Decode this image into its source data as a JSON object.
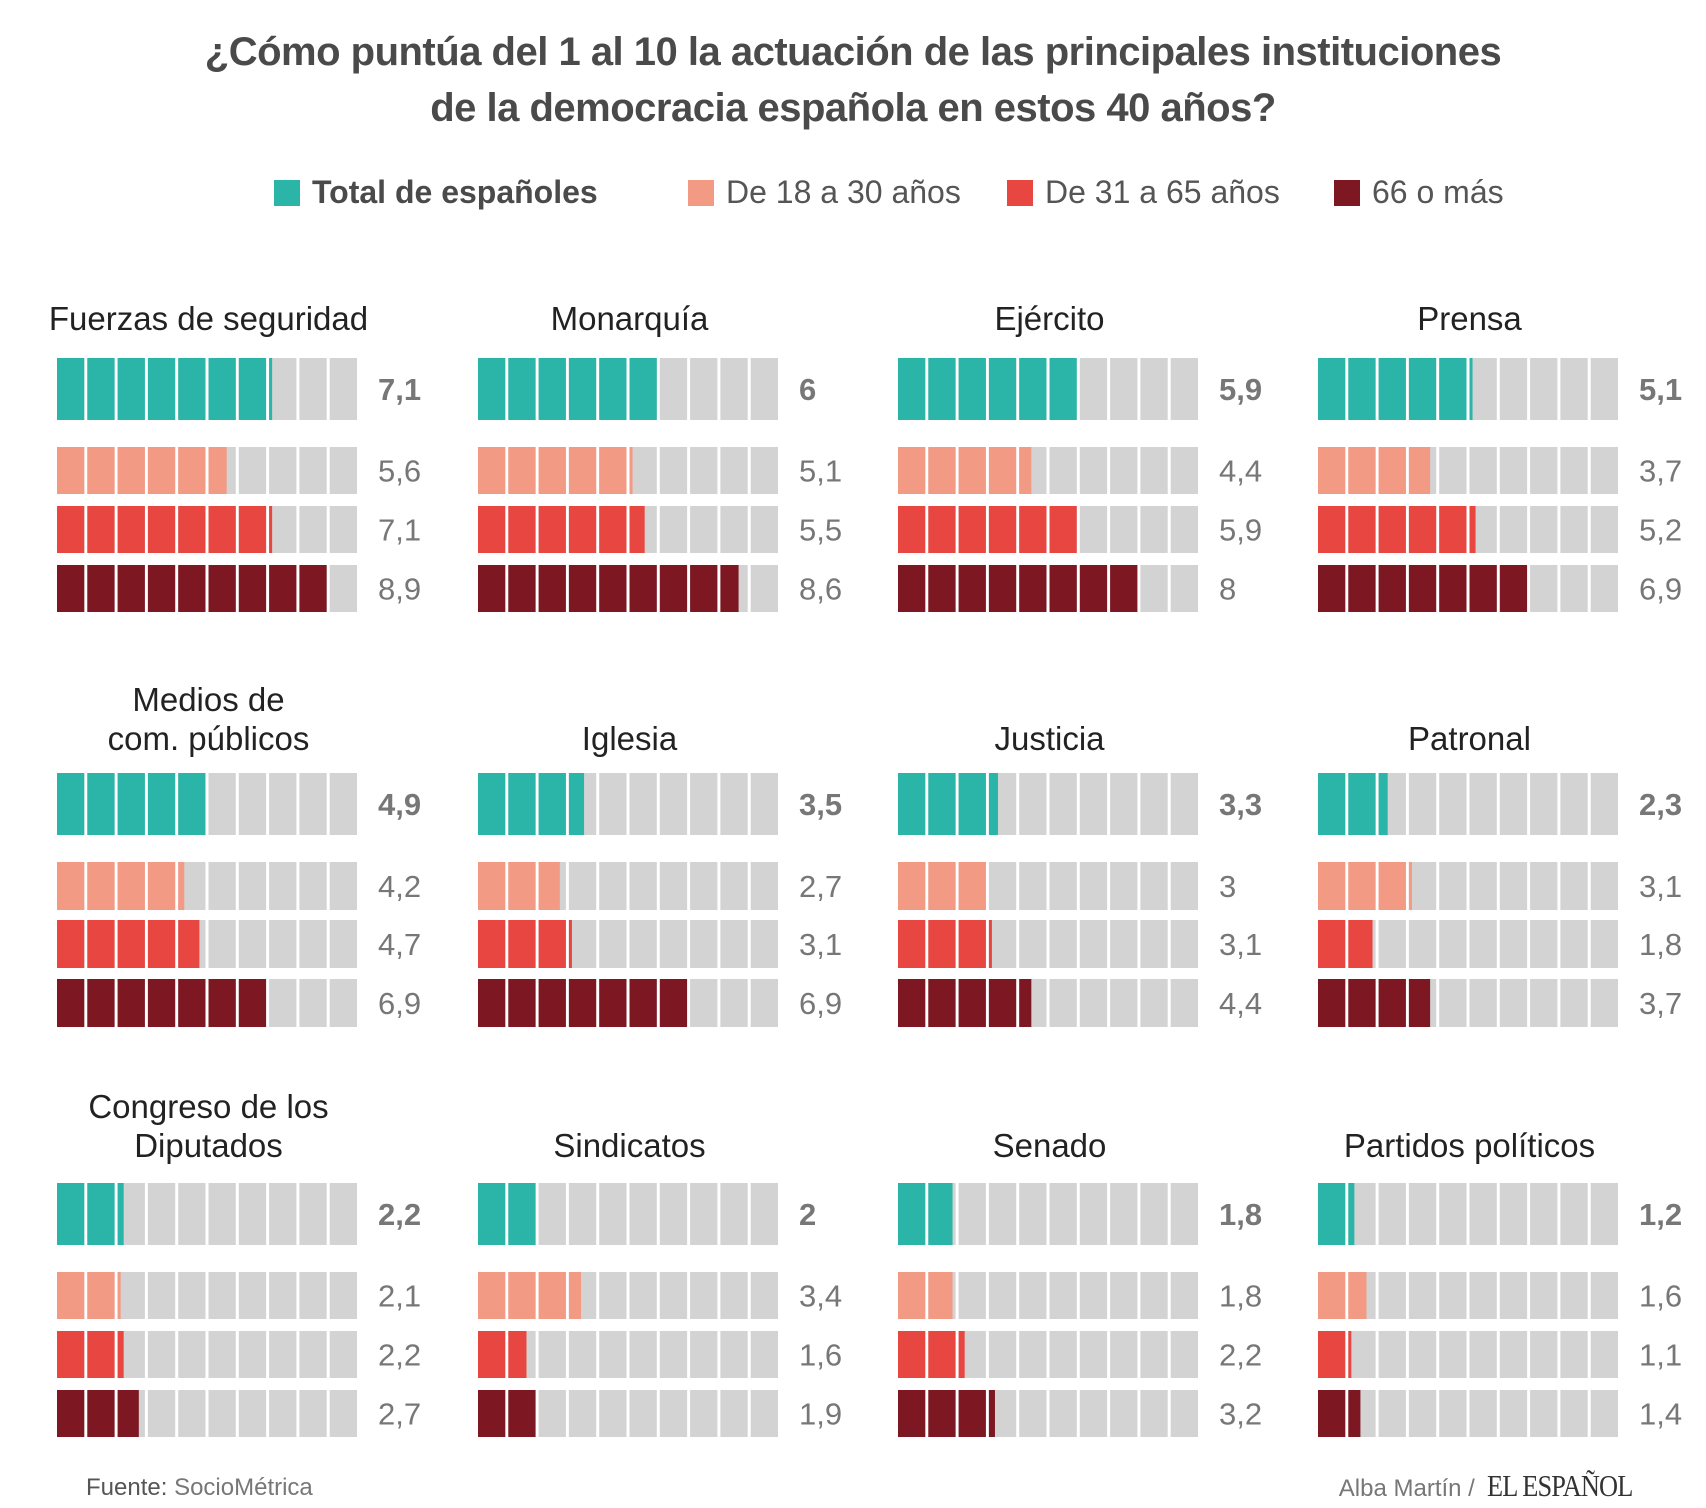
{
  "title_line1": "¿Cómo puntúa del 1 al 10 la actuación de las principales instituciones",
  "title_line2": "de la democracia española en estos 40 años?",
  "legend": [
    {
      "label": "Total de españoles",
      "color": "#2bb5a9",
      "bold": true
    },
    {
      "label": "De 18 a 30 años",
      "color": "#f29a84",
      "bold": false
    },
    {
      "label": "De 31 a 65 años",
      "color": "#e84641",
      "bold": false
    },
    {
      "label": "66 o más",
      "color": "#7d1822",
      "bold": false
    }
  ],
  "colors": {
    "total": "#2bb5a9",
    "age_18_30": "#f29a84",
    "age_31_65": "#e84641",
    "age_66_plus": "#7d1822",
    "empty": "#d3d3d3"
  },
  "chart_data": {
    "type": "bar",
    "title": "¿Cómo puntúa del 1 al 10 la actuación de las principales instituciones de la democracia española en estos 40 años?",
    "xlabel": "",
    "ylabel": "",
    "xlim": [
      0,
      10
    ],
    "segments": 10,
    "series_names": [
      "Total de españoles",
      "De 18 a 30 años",
      "De 31 a 65 años",
      "66 o más"
    ],
    "categories": [
      {
        "name": "Fuerzas de seguridad",
        "title_lines": [
          "Fuerzas de seguridad"
        ],
        "values": [
          7.1,
          5.6,
          7.1,
          8.9
        ],
        "labels": [
          "7,1",
          "5,6",
          "7,1",
          "8,9"
        ]
      },
      {
        "name": "Monarquía",
        "title_lines": [
          "Monarquía"
        ],
        "values": [
          6,
          5.1,
          5.5,
          8.6
        ],
        "labels": [
          "6",
          "5,1",
          "5,5",
          "8,6"
        ]
      },
      {
        "name": "Ejército",
        "title_lines": [
          "Ejército"
        ],
        "values": [
          5.9,
          4.4,
          5.9,
          8
        ],
        "labels": [
          "5,9",
          "4,4",
          "5,9",
          "8"
        ]
      },
      {
        "name": "Prensa",
        "title_lines": [
          "Prensa"
        ],
        "values": [
          5.1,
          3.7,
          5.2,
          6.9
        ],
        "labels": [
          "5,1",
          "3,7",
          "5,2",
          "6,9"
        ]
      },
      {
        "name": "Medios de com. públicos",
        "title_lines": [
          "Medios de",
          "com. públicos"
        ],
        "values": [
          4.9,
          4.2,
          4.7,
          6.9
        ],
        "labels": [
          "4,9",
          "4,2",
          "4,7",
          "6,9"
        ]
      },
      {
        "name": "Iglesia",
        "title_lines": [
          "Iglesia"
        ],
        "values": [
          3.5,
          2.7,
          3.1,
          6.9
        ],
        "labels": [
          "3,5",
          "2,7",
          "3,1",
          "6,9"
        ]
      },
      {
        "name": "Justicia",
        "title_lines": [
          "Justicia"
        ],
        "values": [
          3.3,
          3,
          3.1,
          4.4
        ],
        "labels": [
          "3,3",
          "3",
          "3,1",
          "4,4"
        ]
      },
      {
        "name": "Patronal",
        "title_lines": [
          "Patronal"
        ],
        "values": [
          2.3,
          3.1,
          1.8,
          3.7
        ],
        "labels": [
          "2,3",
          "3,1",
          "1,8",
          "3,7"
        ]
      },
      {
        "name": "Congreso de los Diputados",
        "title_lines": [
          "Congreso de los",
          "Diputados"
        ],
        "values": [
          2.2,
          2.1,
          2.2,
          2.7
        ],
        "labels": [
          "2,2",
          "2,1",
          "2,2",
          "2,7"
        ]
      },
      {
        "name": "Sindicatos",
        "title_lines": [
          "Sindicatos"
        ],
        "values": [
          2,
          3.4,
          1.6,
          1.9
        ],
        "labels": [
          "2",
          "3,4",
          "1,6",
          "1,9"
        ]
      },
      {
        "name": "Senado",
        "title_lines": [
          "Senado"
        ],
        "values": [
          1.8,
          1.8,
          2.2,
          3.2
        ],
        "labels": [
          "1,8",
          "1,8",
          "2,2",
          "3,2"
        ]
      },
      {
        "name": "Partidos políticos",
        "title_lines": [
          "Partidos políticos"
        ],
        "values": [
          1.2,
          1.6,
          1.1,
          1.4
        ],
        "labels": [
          "1,2",
          "1,6",
          "1,1",
          "1,4"
        ]
      }
    ]
  },
  "footer": {
    "source_label": "Fuente:",
    "source_name": "SocioMétrica",
    "author": "Alba Martín /",
    "brand": "EL ESPAÑOL"
  }
}
